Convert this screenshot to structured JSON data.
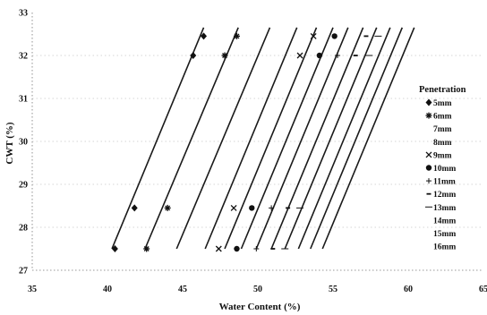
{
  "chart_data": {
    "type": "scatter",
    "xlabel": "Water Content (%)",
    "ylabel": "CWT (%)",
    "xlim": [
      35,
      65
    ],
    "ylim": [
      27,
      33
    ],
    "xticks": [
      "35",
      "40",
      "45",
      "50",
      "55",
      "60",
      "65"
    ],
    "yticks": [
      "27",
      "28",
      "29",
      "30",
      "31",
      "32",
      "33"
    ],
    "grid": true,
    "legend": {
      "title": "Penetration",
      "placement": "right",
      "entries": [
        "5mm",
        "6mm",
        "7mm",
        "8mm",
        "9mm",
        "10mm",
        "11mm",
        "12mm",
        "13mm",
        "14mm",
        "15mm",
        "16mm"
      ]
    },
    "series": [
      {
        "name": "5mm",
        "marker": "diamond",
        "x": [
          40.5,
          41.8,
          45.7,
          46.4
        ],
        "y": [
          27.5,
          28.45,
          32.0,
          32.45
        ],
        "fit": [
          [
            40.3,
            27.5
          ],
          [
            46.4,
            32.65
          ]
        ]
      },
      {
        "name": "6mm",
        "marker": "asterisk",
        "x": [
          42.6,
          44.0,
          47.8,
          48.6
        ],
        "y": [
          27.5,
          28.45,
          32.0,
          32.45
        ],
        "fit": [
          [
            42.5,
            27.5
          ],
          [
            48.7,
            32.65
          ]
        ]
      },
      {
        "name": "7mm",
        "marker": "none",
        "x": [],
        "y": [],
        "fit": [
          [
            44.6,
            27.5
          ],
          [
            50.8,
            32.65
          ]
        ]
      },
      {
        "name": "8mm",
        "marker": "none",
        "x": [],
        "y": [],
        "fit": [
          [
            46.5,
            27.5
          ],
          [
            52.6,
            32.65
          ]
        ]
      },
      {
        "name": "9mm",
        "marker": "cross",
        "x": [
          47.4,
          48.4,
          52.8,
          53.7
        ],
        "y": [
          27.5,
          28.45,
          32.0,
          32.45
        ],
        "fit": [
          [
            47.8,
            27.5
          ],
          [
            53.9,
            32.65
          ]
        ]
      },
      {
        "name": "10mm",
        "marker": "circle",
        "x": [
          48.6,
          49.6,
          54.1,
          55.1
        ],
        "y": [
          27.5,
          28.45,
          32.0,
          32.45
        ],
        "fit": [
          [
            48.9,
            27.5
          ],
          [
            55.0,
            32.65
          ]
        ]
      },
      {
        "name": "11mm",
        "marker": "plus",
        "x": [
          49.9,
          50.9,
          55.3
        ],
        "y": [
          27.5,
          28.45,
          32.0
        ],
        "fit": [
          [
            49.9,
            27.5
          ],
          [
            56.0,
            32.65
          ]
        ]
      },
      {
        "name": "12mm",
        "marker": "dash",
        "x": [
          51.0,
          52.0,
          56.5,
          57.2
        ],
        "y": [
          27.5,
          28.45,
          32.0,
          32.45
        ],
        "fit": [
          [
            50.9,
            27.5
          ],
          [
            57.0,
            32.65
          ]
        ]
      },
      {
        "name": "13mm",
        "marker": "longdash",
        "x": [
          51.8,
          52.8,
          57.4,
          58.0
        ],
        "y": [
          27.5,
          28.45,
          32.0,
          32.45
        ],
        "fit": [
          [
            51.8,
            27.5
          ],
          [
            57.9,
            32.65
          ]
        ]
      },
      {
        "name": "14mm",
        "marker": "none",
        "x": [],
        "y": [],
        "fit": [
          [
            52.7,
            27.5
          ],
          [
            58.8,
            32.65
          ]
        ]
      },
      {
        "name": "15mm",
        "marker": "none",
        "x": [],
        "y": [],
        "fit": [
          [
            53.5,
            27.5
          ],
          [
            59.6,
            32.65
          ]
        ]
      },
      {
        "name": "16mm",
        "marker": "none",
        "x": [],
        "y": [],
        "fit": [
          [
            54.3,
            27.5
          ],
          [
            60.4,
            32.65
          ]
        ]
      }
    ]
  }
}
